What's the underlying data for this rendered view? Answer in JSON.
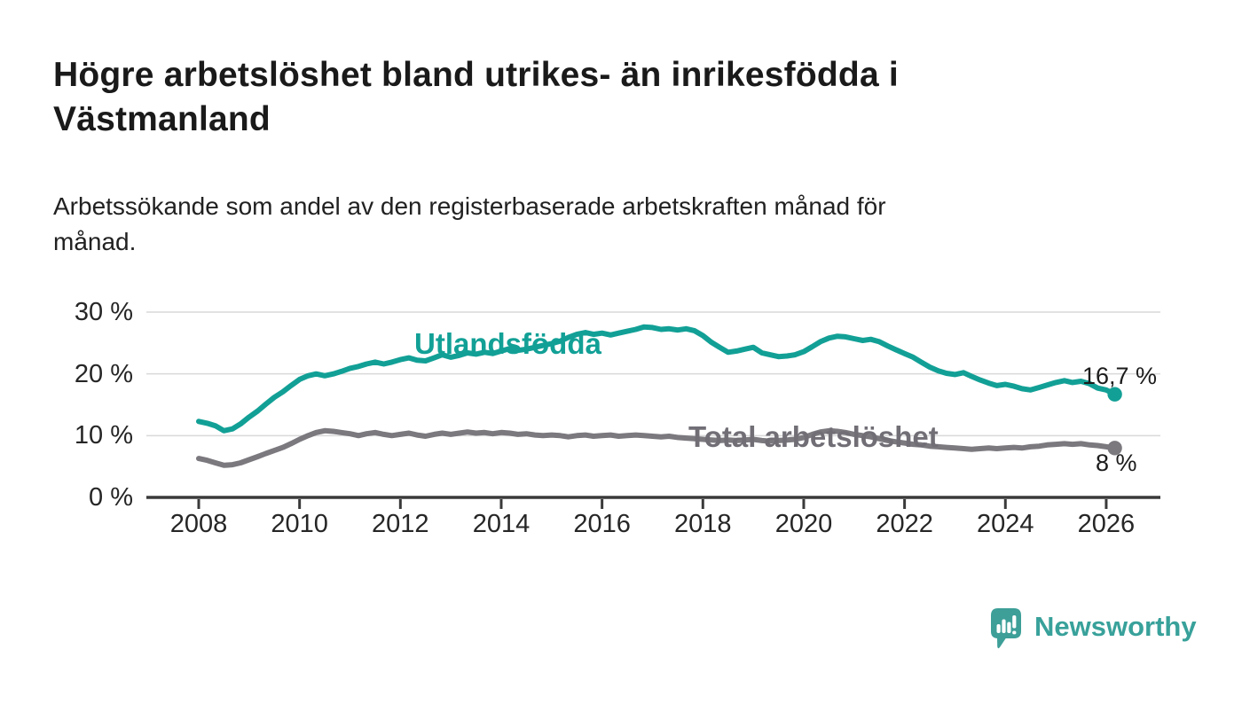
{
  "title": {
    "line1": "Högre arbetslöshet bland utrikes- än inrikesfödda i",
    "line2": "Västmanland"
  },
  "subtitle": {
    "line1": "Arbetssökande som andel av den registerbaserade arbetskraften månad för",
    "line2": "månad."
  },
  "logo": {
    "name": "Newsworthy",
    "icon": "newsworthy-speech-bubble-bar-chart-icon",
    "color": "#3d9f98"
  },
  "colors": {
    "foreign_born_line": "#12a096",
    "total_line": "#7b787e",
    "grid": "#d9d9d9",
    "axis": "#3a3a3a",
    "annotation_text": "#1b1b1b"
  },
  "chart_data": {
    "type": "line",
    "title": "Högre arbetslöshet bland utrikes- än inrikesfödda i Västmanland",
    "subtitle": "Arbetssökande som andel av den registerbaserade arbetskraften månad för månad.",
    "grid": "horizontal",
    "legend_position": "inline-labels-on-lines",
    "x_axis": {
      "range": [
        2007.0,
        2027.1
      ],
      "ticks": [
        2008,
        2010,
        2012,
        2014,
        2016,
        2018,
        2020,
        2022,
        2024,
        2026
      ],
      "tick_labels": [
        "2008",
        "2010",
        "2012",
        "2014",
        "2016",
        "2018",
        "2020",
        "2022",
        "2024",
        "2026"
      ]
    },
    "y_axis": {
      "range": [
        0,
        30
      ],
      "ticks": [
        0,
        10,
        20,
        30
      ],
      "tick_labels": [
        "0 %",
        "10 %",
        "20 %",
        "30 %"
      ],
      "unit": "%"
    },
    "series": [
      {
        "name": "utlandsfodda",
        "label": "Utlandsfödda",
        "color": "#12a096",
        "end_label": "16,7 %",
        "end_value": 16.7,
        "points": [
          [
            2008.0,
            12.3
          ],
          [
            2008.17,
            12.0
          ],
          [
            2008.33,
            11.6
          ],
          [
            2008.5,
            10.8
          ],
          [
            2008.67,
            11.1
          ],
          [
            2008.83,
            11.9
          ],
          [
            2009.0,
            13.0
          ],
          [
            2009.17,
            14.0
          ],
          [
            2009.33,
            15.1
          ],
          [
            2009.5,
            16.2
          ],
          [
            2009.67,
            17.1
          ],
          [
            2009.83,
            18.1
          ],
          [
            2010.0,
            19.1
          ],
          [
            2010.17,
            19.7
          ],
          [
            2010.33,
            20.0
          ],
          [
            2010.5,
            19.7
          ],
          [
            2010.67,
            20.0
          ],
          [
            2010.83,
            20.4
          ],
          [
            2011.0,
            20.9
          ],
          [
            2011.17,
            21.2
          ],
          [
            2011.33,
            21.6
          ],
          [
            2011.5,
            21.9
          ],
          [
            2011.67,
            21.6
          ],
          [
            2011.83,
            21.9
          ],
          [
            2012.0,
            22.3
          ],
          [
            2012.17,
            22.6
          ],
          [
            2012.33,
            22.2
          ],
          [
            2012.5,
            22.1
          ],
          [
            2012.67,
            22.6
          ],
          [
            2012.83,
            23.1
          ],
          [
            2013.0,
            22.7
          ],
          [
            2013.17,
            23.0
          ],
          [
            2013.33,
            23.4
          ],
          [
            2013.5,
            23.2
          ],
          [
            2013.67,
            23.5
          ],
          [
            2013.83,
            23.3
          ],
          [
            2014.0,
            23.7
          ],
          [
            2014.17,
            24.1
          ],
          [
            2014.33,
            23.8
          ],
          [
            2014.5,
            24.0
          ],
          [
            2014.67,
            24.3
          ],
          [
            2014.83,
            24.6
          ],
          [
            2015.0,
            24.9
          ],
          [
            2015.17,
            25.3
          ],
          [
            2015.33,
            25.9
          ],
          [
            2015.5,
            26.4
          ],
          [
            2015.67,
            26.7
          ],
          [
            2015.83,
            26.4
          ],
          [
            2016.0,
            26.6
          ],
          [
            2016.17,
            26.3
          ],
          [
            2016.33,
            26.6
          ],
          [
            2016.5,
            26.9
          ],
          [
            2016.67,
            27.2
          ],
          [
            2016.83,
            27.6
          ],
          [
            2017.0,
            27.5
          ],
          [
            2017.17,
            27.2
          ],
          [
            2017.33,
            27.3
          ],
          [
            2017.5,
            27.1
          ],
          [
            2017.67,
            27.3
          ],
          [
            2017.83,
            27.0
          ],
          [
            2018.0,
            26.2
          ],
          [
            2018.17,
            25.1
          ],
          [
            2018.33,
            24.3
          ],
          [
            2018.5,
            23.5
          ],
          [
            2018.67,
            23.7
          ],
          [
            2018.83,
            24.0
          ],
          [
            2019.0,
            24.3
          ],
          [
            2019.17,
            23.4
          ],
          [
            2019.33,
            23.1
          ],
          [
            2019.5,
            22.8
          ],
          [
            2019.67,
            22.9
          ],
          [
            2019.83,
            23.1
          ],
          [
            2020.0,
            23.6
          ],
          [
            2020.17,
            24.4
          ],
          [
            2020.33,
            25.2
          ],
          [
            2020.5,
            25.8
          ],
          [
            2020.67,
            26.1
          ],
          [
            2020.83,
            26.0
          ],
          [
            2021.0,
            25.7
          ],
          [
            2021.17,
            25.4
          ],
          [
            2021.33,
            25.6
          ],
          [
            2021.5,
            25.2
          ],
          [
            2021.67,
            24.5
          ],
          [
            2021.83,
            23.9
          ],
          [
            2022.0,
            23.3
          ],
          [
            2022.17,
            22.7
          ],
          [
            2022.33,
            21.9
          ],
          [
            2022.5,
            21.1
          ],
          [
            2022.67,
            20.5
          ],
          [
            2022.83,
            20.1
          ],
          [
            2023.0,
            19.9
          ],
          [
            2023.17,
            20.2
          ],
          [
            2023.33,
            19.6
          ],
          [
            2023.5,
            19.0
          ],
          [
            2023.67,
            18.5
          ],
          [
            2023.83,
            18.1
          ],
          [
            2024.0,
            18.3
          ],
          [
            2024.17,
            18.0
          ],
          [
            2024.33,
            17.6
          ],
          [
            2024.5,
            17.4
          ],
          [
            2024.67,
            17.8
          ],
          [
            2024.83,
            18.2
          ],
          [
            2025.0,
            18.6
          ],
          [
            2025.17,
            18.9
          ],
          [
            2025.33,
            18.6
          ],
          [
            2025.5,
            18.8
          ],
          [
            2025.67,
            18.4
          ],
          [
            2025.83,
            17.7
          ],
          [
            2026.0,
            17.4
          ],
          [
            2026.17,
            16.7
          ]
        ]
      },
      {
        "name": "total-arbetsloshet",
        "label": "Total arbetslöshet",
        "color": "#7b787e",
        "end_label": "8 %",
        "end_value": 8.0,
        "points": [
          [
            2008.0,
            6.3
          ],
          [
            2008.17,
            6.0
          ],
          [
            2008.33,
            5.6
          ],
          [
            2008.5,
            5.2
          ],
          [
            2008.67,
            5.3
          ],
          [
            2008.83,
            5.6
          ],
          [
            2009.0,
            6.1
          ],
          [
            2009.17,
            6.6
          ],
          [
            2009.33,
            7.1
          ],
          [
            2009.5,
            7.6
          ],
          [
            2009.67,
            8.1
          ],
          [
            2009.83,
            8.7
          ],
          [
            2010.0,
            9.4
          ],
          [
            2010.17,
            10.0
          ],
          [
            2010.33,
            10.5
          ],
          [
            2010.5,
            10.8
          ],
          [
            2010.67,
            10.7
          ],
          [
            2010.83,
            10.5
          ],
          [
            2011.0,
            10.3
          ],
          [
            2011.17,
            10.0
          ],
          [
            2011.33,
            10.3
          ],
          [
            2011.5,
            10.5
          ],
          [
            2011.67,
            10.2
          ],
          [
            2011.83,
            10.0
          ],
          [
            2012.0,
            10.2
          ],
          [
            2012.17,
            10.4
          ],
          [
            2012.33,
            10.1
          ],
          [
            2012.5,
            9.9
          ],
          [
            2012.67,
            10.2
          ],
          [
            2012.83,
            10.4
          ],
          [
            2013.0,
            10.2
          ],
          [
            2013.17,
            10.4
          ],
          [
            2013.33,
            10.6
          ],
          [
            2013.5,
            10.4
          ],
          [
            2013.67,
            10.5
          ],
          [
            2013.83,
            10.3
          ],
          [
            2014.0,
            10.5
          ],
          [
            2014.17,
            10.4
          ],
          [
            2014.33,
            10.2
          ],
          [
            2014.5,
            10.3
          ],
          [
            2014.67,
            10.1
          ],
          [
            2014.83,
            10.0
          ],
          [
            2015.0,
            10.1
          ],
          [
            2015.17,
            10.0
          ],
          [
            2015.33,
            9.8
          ],
          [
            2015.5,
            10.0
          ],
          [
            2015.67,
            10.1
          ],
          [
            2015.83,
            9.9
          ],
          [
            2016.0,
            10.0
          ],
          [
            2016.17,
            10.1
          ],
          [
            2016.33,
            9.9
          ],
          [
            2016.5,
            10.0
          ],
          [
            2016.67,
            10.1
          ],
          [
            2016.83,
            10.0
          ],
          [
            2017.0,
            9.9
          ],
          [
            2017.17,
            9.8
          ],
          [
            2017.33,
            9.9
          ],
          [
            2017.5,
            9.7
          ],
          [
            2017.67,
            9.6
          ],
          [
            2017.83,
            9.5
          ],
          [
            2018.0,
            9.4
          ],
          [
            2018.17,
            9.3
          ],
          [
            2018.33,
            9.2
          ],
          [
            2018.5,
            9.3
          ],
          [
            2018.67,
            9.2
          ],
          [
            2018.83,
            9.3
          ],
          [
            2019.0,
            9.4
          ],
          [
            2019.17,
            9.2
          ],
          [
            2019.33,
            9.1
          ],
          [
            2019.5,
            9.2
          ],
          [
            2019.67,
            9.3
          ],
          [
            2019.83,
            9.4
          ],
          [
            2020.0,
            9.7
          ],
          [
            2020.17,
            10.2
          ],
          [
            2020.33,
            10.6
          ],
          [
            2020.5,
            10.8
          ],
          [
            2020.67,
            10.7
          ],
          [
            2020.83,
            10.5
          ],
          [
            2021.0,
            10.2
          ],
          [
            2021.17,
            10.0
          ],
          [
            2021.33,
            9.8
          ],
          [
            2021.5,
            9.5
          ],
          [
            2021.67,
            9.2
          ],
          [
            2021.83,
            9.0
          ],
          [
            2022.0,
            8.8
          ],
          [
            2022.17,
            8.6
          ],
          [
            2022.33,
            8.5
          ],
          [
            2022.5,
            8.3
          ],
          [
            2022.67,
            8.2
          ],
          [
            2022.83,
            8.1
          ],
          [
            2023.0,
            8.0
          ],
          [
            2023.17,
            7.9
          ],
          [
            2023.33,
            7.8
          ],
          [
            2023.5,
            7.9
          ],
          [
            2023.67,
            8.0
          ],
          [
            2023.83,
            7.9
          ],
          [
            2024.0,
            8.0
          ],
          [
            2024.17,
            8.1
          ],
          [
            2024.33,
            8.0
          ],
          [
            2024.5,
            8.2
          ],
          [
            2024.67,
            8.3
          ],
          [
            2024.83,
            8.5
          ],
          [
            2025.0,
            8.6
          ],
          [
            2025.17,
            8.7
          ],
          [
            2025.33,
            8.6
          ],
          [
            2025.5,
            8.7
          ],
          [
            2025.67,
            8.5
          ],
          [
            2025.83,
            8.4
          ],
          [
            2026.0,
            8.2
          ],
          [
            2026.17,
            8.0
          ]
        ]
      }
    ]
  }
}
